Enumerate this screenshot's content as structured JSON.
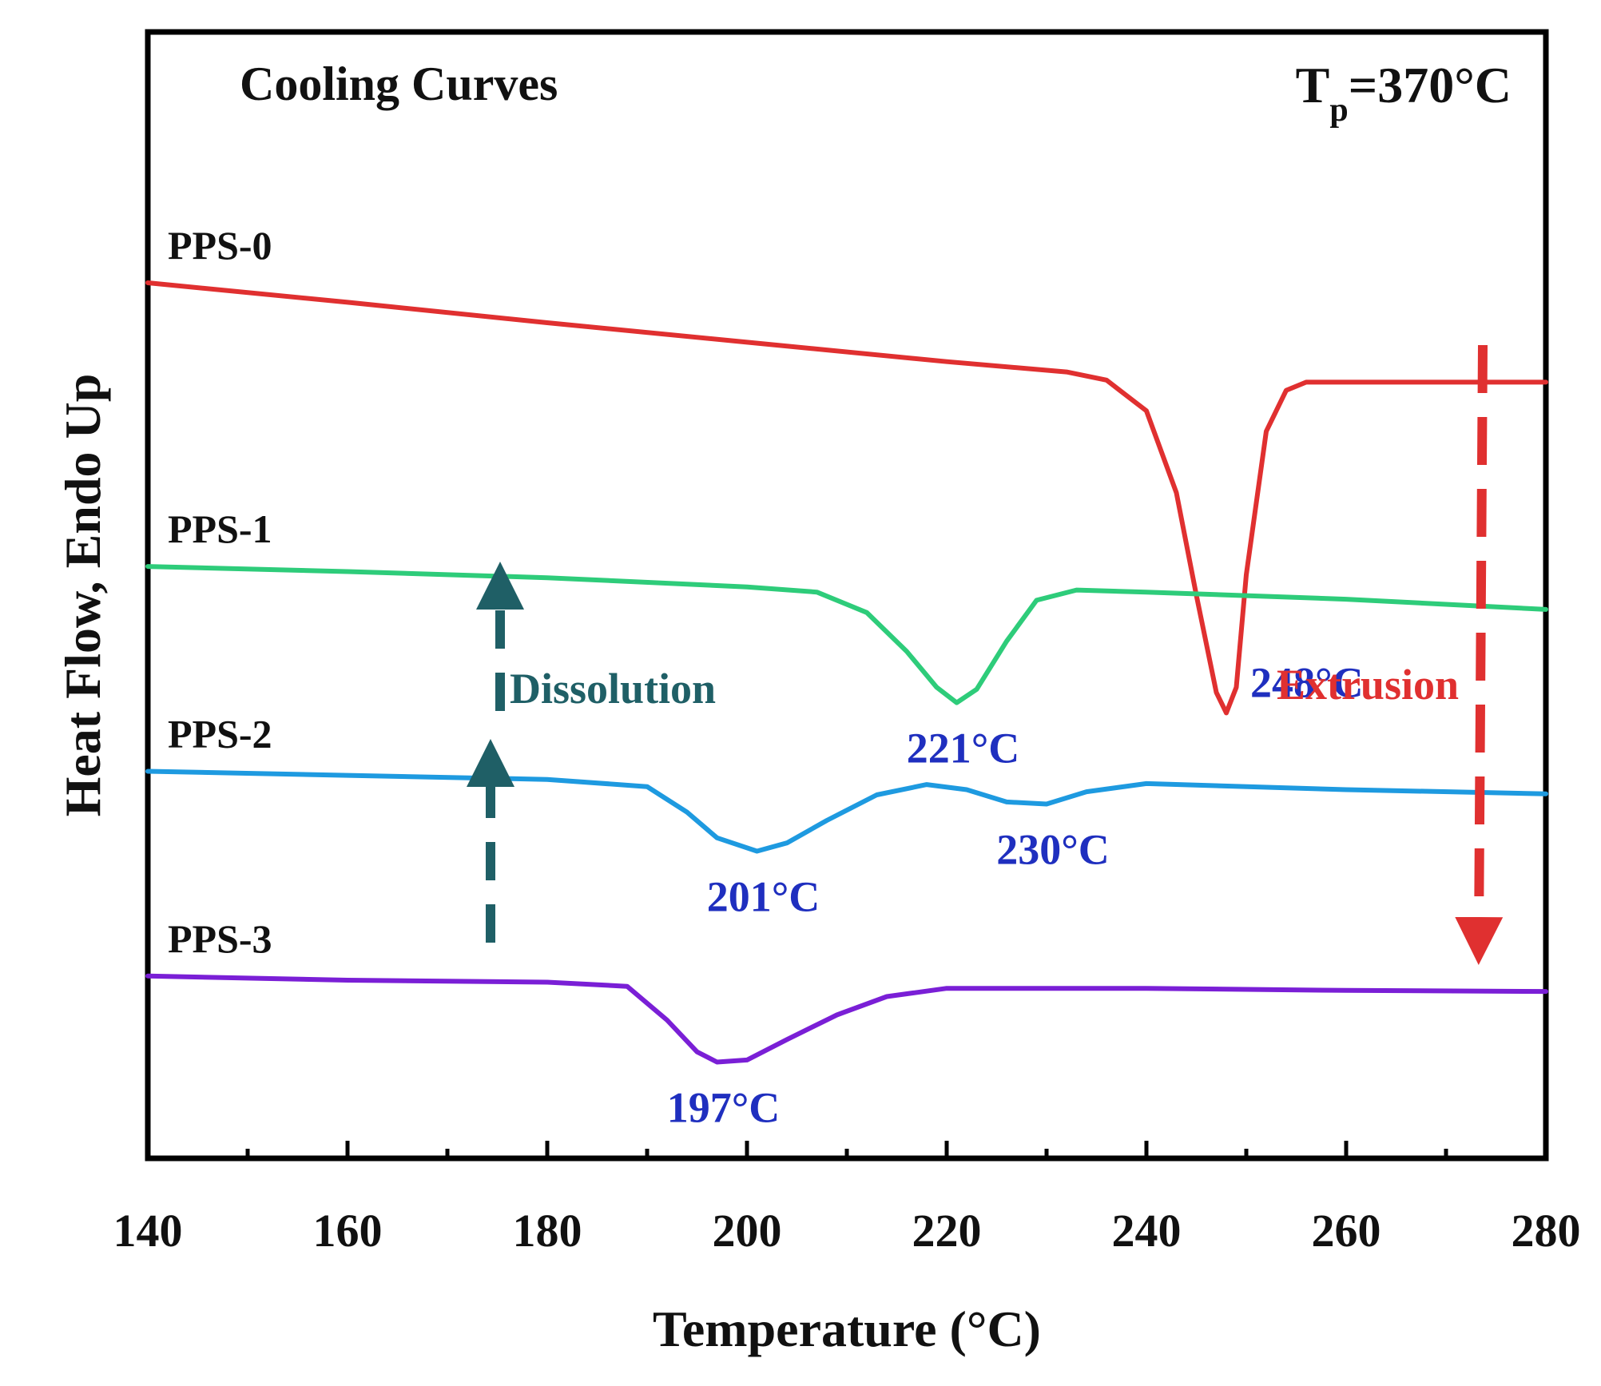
{
  "chart_data": {
    "type": "line",
    "title": "Cooling Curves",
    "condition": {
      "prefix": "T",
      "subscript": "p",
      "suffix": "=370°C"
    },
    "xlabel": "Temperature (°C)",
    "ylabel": "Heat Flow, Endo Up",
    "xlim": [
      140,
      280
    ],
    "y_ticks_shown": false,
    "grid": false,
    "x_ticks": [
      "140",
      "160",
      "180",
      "200",
      "220",
      "240",
      "260",
      "280"
    ],
    "series": [
      {
        "name": "PPS-0",
        "color": "#e03030",
        "points": [
          [
            140,
            70.5
          ],
          [
            160,
            68.6
          ],
          [
            180,
            66.6
          ],
          [
            200,
            64.7
          ],
          [
            220,
            62.8
          ],
          [
            232,
            61.8
          ],
          [
            236,
            61.0
          ],
          [
            240,
            58.0
          ],
          [
            243,
            50.0
          ],
          [
            245,
            40.0
          ],
          [
            247,
            30.5
          ],
          [
            248,
            28.5
          ],
          [
            249,
            31.0
          ],
          [
            250,
            42.0
          ],
          [
            252,
            56.0
          ],
          [
            254,
            60.0
          ],
          [
            256,
            60.8
          ],
          [
            265,
            60.8
          ],
          [
            280,
            60.8
          ]
        ]
      },
      {
        "name": "PPS-1",
        "color": "#2ecc7a",
        "points": [
          [
            140,
            42.8
          ],
          [
            160,
            42.3
          ],
          [
            180,
            41.7
          ],
          [
            200,
            40.8
          ],
          [
            207,
            40.3
          ],
          [
            212,
            38.3
          ],
          [
            216,
            34.5
          ],
          [
            219,
            31.0
          ],
          [
            221,
            29.5
          ],
          [
            223,
            30.8
          ],
          [
            226,
            35.5
          ],
          [
            229,
            39.5
          ],
          [
            233,
            40.5
          ],
          [
            240,
            40.3
          ],
          [
            260,
            39.6
          ],
          [
            280,
            38.6
          ]
        ]
      },
      {
        "name": "PPS-2",
        "color": "#1e9ae0",
        "points": [
          [
            140,
            22.8
          ],
          [
            160,
            22.4
          ],
          [
            180,
            22.0
          ],
          [
            190,
            21.3
          ],
          [
            194,
            18.8
          ],
          [
            197,
            16.3
          ],
          [
            201,
            15.0
          ],
          [
            204,
            15.8
          ],
          [
            208,
            18.0
          ],
          [
            213,
            20.5
          ],
          [
            218,
            21.5
          ],
          [
            222,
            21.0
          ],
          [
            226,
            19.8
          ],
          [
            230,
            19.6
          ],
          [
            234,
            20.8
          ],
          [
            240,
            21.6
          ],
          [
            260,
            21.0
          ],
          [
            280,
            20.6
          ]
        ]
      },
      {
        "name": "PPS-3",
        "color": "#7a1fd6",
        "points": [
          [
            140,
            2.8
          ],
          [
            160,
            2.4
          ],
          [
            180,
            2.2
          ],
          [
            188,
            1.8
          ],
          [
            192,
            -1.5
          ],
          [
            195,
            -4.6
          ],
          [
            197,
            -5.6
          ],
          [
            200,
            -5.4
          ],
          [
            204,
            -3.4
          ],
          [
            209,
            -1.0
          ],
          [
            214,
            0.8
          ],
          [
            220,
            1.6
          ],
          [
            240,
            1.6
          ],
          [
            260,
            1.4
          ],
          [
            280,
            1.3
          ]
        ]
      }
    ],
    "peak_labels": [
      {
        "text": "248°C",
        "x": 248,
        "series": "PPS-0"
      },
      {
        "text": "221°C",
        "x": 221,
        "series": "PPS-1"
      },
      {
        "text": "201°C",
        "x": 201,
        "series": "PPS-2"
      },
      {
        "text": "230°C",
        "x": 230,
        "series": "PPS-2"
      },
      {
        "text": "197°C",
        "x": 197,
        "series": "PPS-3"
      }
    ],
    "annotations": [
      {
        "text": "Dissolution",
        "color": "#1f5f66",
        "arrow": "dashed-up",
        "x": 175
      },
      {
        "text": "Extrusion",
        "color": "#e03030",
        "arrow": "dashed-down",
        "x": 274
      }
    ],
    "ylim": [
      -15,
      95
    ]
  }
}
